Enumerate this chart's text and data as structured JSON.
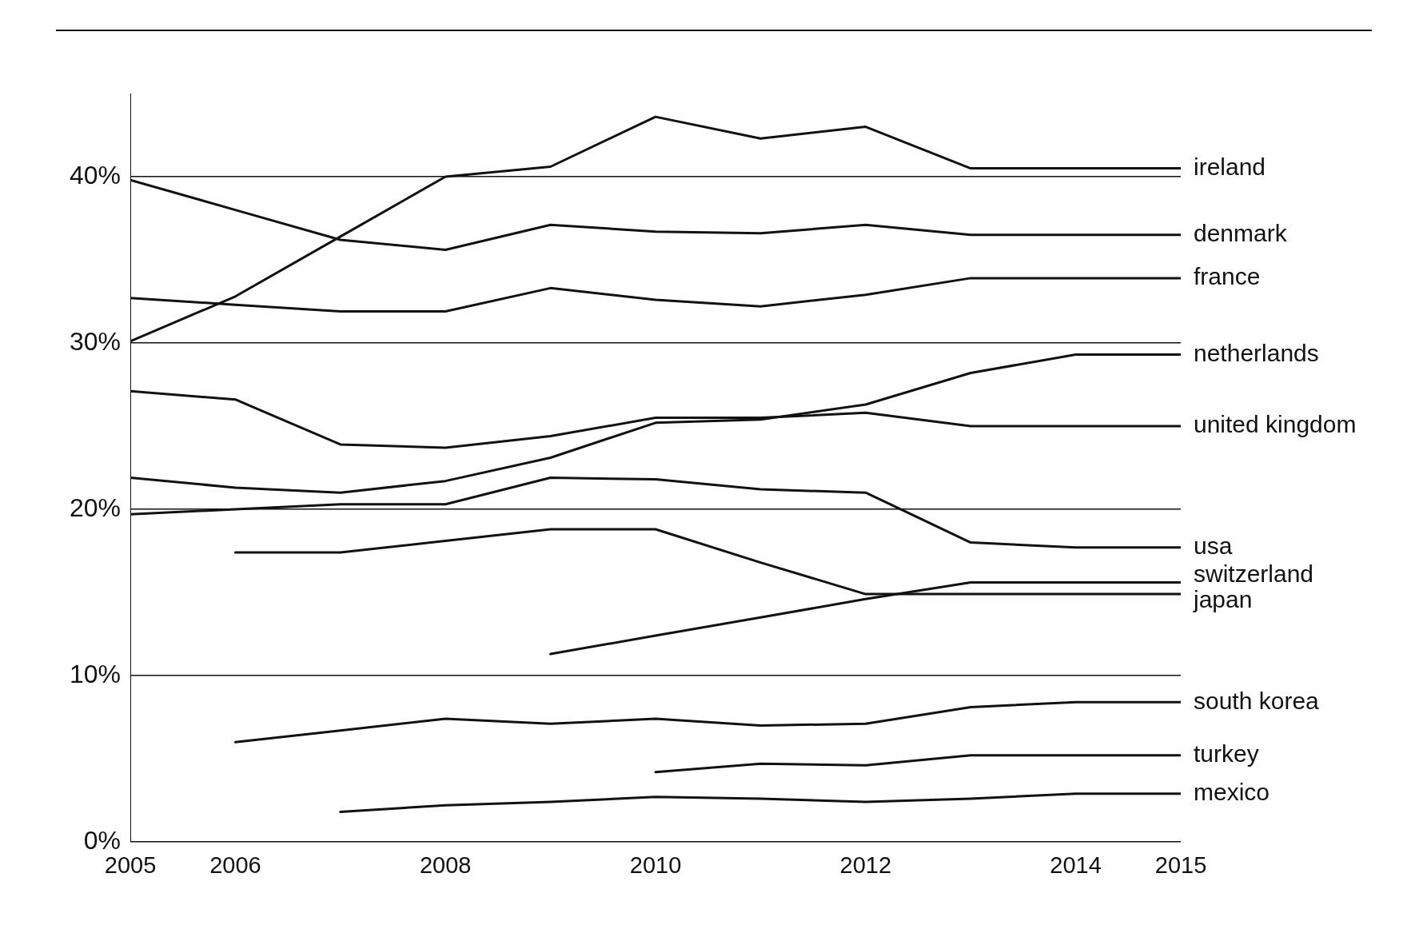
{
  "chart_data": {
    "type": "line",
    "x": [
      2005,
      2006,
      2007,
      2008,
      2009,
      2010,
      2011,
      2012,
      2013,
      2014,
      2015
    ],
    "xlim": [
      2005,
      2015
    ],
    "xticks": [
      2005,
      2006,
      2008,
      2010,
      2012,
      2014,
      2015
    ],
    "ylim": [
      0,
      45
    ],
    "yticks": [
      {
        "value": 0,
        "label": "0%"
      },
      {
        "value": 10,
        "label": "10%"
      },
      {
        "value": 20,
        "label": "20%"
      },
      {
        "value": 30,
        "label": "30%"
      },
      {
        "value": 40,
        "label": "40%"
      }
    ],
    "grid": "y",
    "legend": false,
    "marker": "none",
    "line_style": "solid",
    "series": [
      {
        "name": "ireland",
        "color": "#111111",
        "values": [
          30.1,
          32.8,
          36.4,
          40.0,
          40.6,
          43.6,
          42.3,
          43.0,
          40.5,
          40.5,
          40.5
        ]
      },
      {
        "name": "denmark",
        "color": "#111111",
        "values": [
          39.8,
          38.0,
          36.2,
          35.6,
          37.1,
          36.7,
          36.6,
          37.1,
          36.5,
          36.5,
          36.5
        ]
      },
      {
        "name": "france",
        "color": "#111111",
        "values": [
          32.7,
          32.3,
          31.9,
          31.9,
          33.3,
          32.6,
          32.2,
          32.9,
          33.9,
          33.9,
          33.9
        ]
      },
      {
        "name": "netherlands",
        "color": "#111111",
        "values": [
          21.9,
          21.3,
          21.0,
          21.7,
          23.1,
          25.2,
          25.4,
          26.3,
          28.2,
          29.3,
          29.3
        ]
      },
      {
        "name": "united kingdom",
        "color": "#111111",
        "values": [
          27.1,
          26.6,
          23.9,
          23.7,
          24.4,
          25.5,
          25.5,
          25.8,
          25.0,
          25.0,
          25.0
        ]
      },
      {
        "name": "usa",
        "color": "#111111",
        "values": [
          19.7,
          20.0,
          20.3,
          20.3,
          21.9,
          21.8,
          21.2,
          21.0,
          18.0,
          17.7,
          17.7
        ]
      },
      {
        "name": "switzerland",
        "color": "#111111",
        "values": [
          null,
          null,
          null,
          null,
          11.3,
          12.4,
          13.5,
          14.6,
          15.6,
          15.6,
          15.6
        ]
      },
      {
        "name": "japan",
        "color": "#111111",
        "values": [
          null,
          17.4,
          17.4,
          18.1,
          18.8,
          18.8,
          16.8,
          14.9,
          14.9,
          14.9,
          14.9
        ]
      },
      {
        "name": "south korea",
        "color": "#111111",
        "values": [
          null,
          6.0,
          6.7,
          7.4,
          7.1,
          7.4,
          7.0,
          7.1,
          8.1,
          8.4,
          8.4
        ]
      },
      {
        "name": "turkey",
        "color": "#111111",
        "values": [
          null,
          null,
          null,
          null,
          null,
          4.2,
          4.7,
          4.6,
          5.2,
          5.2,
          5.2
        ]
      },
      {
        "name": "mexico",
        "color": "#111111",
        "values": [
          null,
          null,
          1.8,
          2.2,
          2.4,
          2.7,
          2.6,
          2.4,
          2.6,
          2.9,
          2.9
        ]
      }
    ]
  }
}
